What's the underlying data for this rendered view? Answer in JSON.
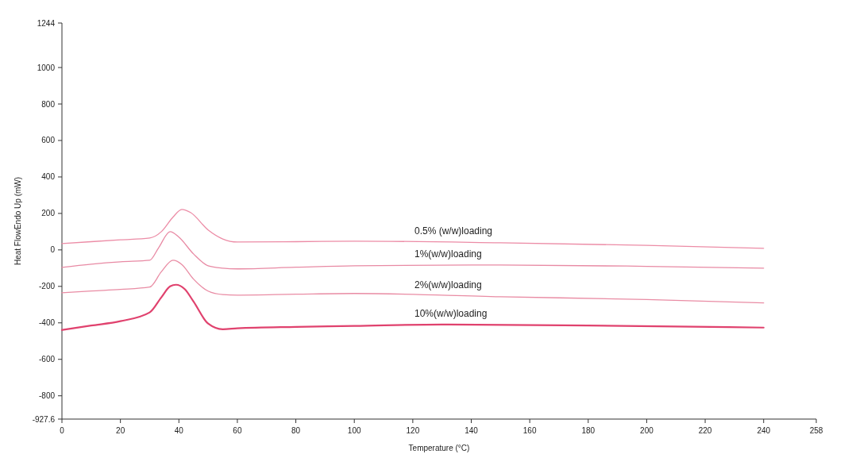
{
  "chart_data": {
    "type": "line",
    "xlabel": "Temperature (°C)",
    "ylabel": "Heat FlowEndo Up (mW)",
    "xlim": [
      0,
      258
    ],
    "xticks": [
      0,
      20,
      40,
      60,
      80,
      100,
      120,
      140,
      160,
      180,
      200,
      220,
      240,
      258
    ],
    "ylim": [
      -927.6,
      1244
    ],
    "yticks": [
      -927.6,
      -800,
      -600,
      -400,
      -200,
      0,
      200,
      400,
      600,
      800,
      1000,
      1244
    ],
    "grid": false,
    "marker": "none",
    "line_style": "solid",
    "series": [
      {
        "name": "0.5% (w/w)loading",
        "color": "#ec8ca6",
        "x": [
          0,
          10,
          20,
          30,
          34,
          38,
          41,
          44,
          50,
          55,
          60,
          80,
          100,
          150,
          200,
          240
        ],
        "values": [
          35,
          45,
          55,
          65,
          100,
          180,
          222,
          205,
          109,
          60,
          43,
          45,
          48,
          39,
          25,
          9
        ]
      },
      {
        "name": "1%(w/w)loading",
        "color": "#e88aa4",
        "x": [
          0,
          10,
          20,
          30,
          33,
          37,
          40,
          45,
          50,
          55,
          60,
          80,
          100,
          150,
          200,
          240
        ],
        "values": [
          -96,
          -78,
          -65,
          -57,
          10,
          100,
          70,
          -22,
          -87,
          -100,
          -104,
          -95,
          -87,
          -83,
          -90,
          -100
        ]
      },
      {
        "name": "2%(w/w)loading",
        "color": "#e98ca4",
        "x": [
          0,
          10,
          20,
          30,
          34,
          38,
          41,
          45,
          50,
          55,
          60,
          80,
          100,
          150,
          200,
          240
        ],
        "values": [
          -235,
          -225,
          -217,
          -204,
          -120,
          -57,
          -80,
          -160,
          -226,
          -245,
          -248,
          -243,
          -239,
          -257,
          -272,
          -291
        ]
      },
      {
        "name": "10%(w/w)loading",
        "color": "#e0426e",
        "x": [
          0,
          10,
          20,
          30,
          34,
          37,
          39,
          42,
          45,
          50,
          55,
          60,
          80,
          100,
          130,
          180,
          240
        ],
        "values": [
          -439,
          -415,
          -391,
          -343,
          -260,
          -200,
          -191,
          -215,
          -283,
          -404,
          -435,
          -430,
          -422,
          -417,
          -409,
          -415,
          -426
        ]
      }
    ]
  }
}
